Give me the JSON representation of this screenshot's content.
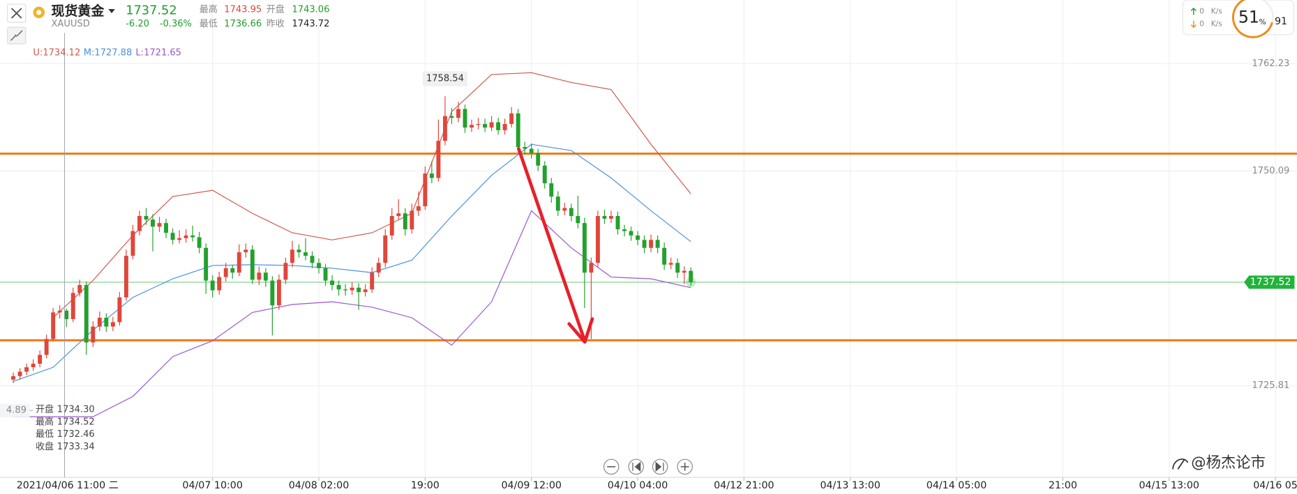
{
  "header": {
    "name": "现货黄金",
    "symbol": "XAUUSD",
    "change": "-6.20",
    "change_pct": "-0.36%",
    "high_label": "最高",
    "high": "1743.95",
    "open_label": "开盘",
    "open": "1743.06",
    "low_label": "最低",
    "low": "1736.66",
    "prev_close_label": "昨收",
    "prev_close": "1743.72"
  },
  "indicator": {
    "upper": "U:1734.12",
    "middle": "M:1727.88",
    "lower": "L:1721.65"
  },
  "crosshair": {
    "time": "2021/04/06 11:00 二",
    "price": "4.89",
    "labels": [
      "开盘",
      "最高",
      "最低",
      "收盘"
    ],
    "values": [
      "1734.30",
      "1734.52",
      "1732.46",
      "1733.34"
    ]
  },
  "widget": {
    "up_speed": "0",
    "down_speed": "0",
    "unit": "K/s",
    "percent": "51",
    "percent_sign": "%",
    "count": "91"
  },
  "watermark": "@杨杰论市",
  "chart_data": {
    "type": "candlestick",
    "up_color": "#e0463b",
    "down_color": "#22a12d",
    "xlim": [
      -2,
      193
    ],
    "ylim": [
      1715.44,
      1769.42
    ],
    "yticks": [
      1725.81,
      1750.09,
      1762.23
    ],
    "xticks": [
      {
        "value": 30,
        "label": "04/07 10:00"
      },
      {
        "value": 46,
        "label": "04/08 02:00"
      },
      {
        "value": 62,
        "label": "19:00"
      },
      {
        "value": 78,
        "label": "04/09 12:00"
      },
      {
        "value": 94,
        "label": "04/10 04:00"
      },
      {
        "value": 110,
        "label": "04/12 21:00"
      },
      {
        "value": 126,
        "label": "04/13 13:00"
      },
      {
        "value": 142,
        "label": "04/14 05:00"
      },
      {
        "value": 158,
        "label": "21:00"
      },
      {
        "value": 174,
        "label": "04/15 13:00"
      },
      {
        "value": 190,
        "label": "04/16 05"
      }
    ],
    "grid": true,
    "last_price": 1737.52,
    "last_color": "#22b33a",
    "horizontal_lines": [
      1752.05,
      1730.95
    ],
    "horizontal_line_color": "#f07a1a",
    "candles": [
      [
        1726.5,
        1727.3,
        1726.1,
        1726.9
      ],
      [
        1726.9,
        1727.8,
        1726.5,
        1727.4
      ],
      [
        1727.4,
        1728.3,
        1727.0,
        1727.9
      ],
      [
        1727.9,
        1728.8,
        1727.5,
        1728.3
      ],
      [
        1728.3,
        1729.8,
        1727.9,
        1729.3
      ],
      [
        1729.3,
        1731.6,
        1728.9,
        1731.1
      ],
      [
        1731.1,
        1734.6,
        1730.8,
        1734.1
      ],
      [
        1734.1,
        1734.9,
        1733.4,
        1734.3
      ],
      [
        1734.3,
        1734.52,
        1732.46,
        1733.34
      ],
      [
        1733.34,
        1736.9,
        1733.0,
        1736.3
      ],
      [
        1736.3,
        1737.8,
        1735.9,
        1737.2
      ],
      [
        1737.2,
        1737.6,
        1729.3,
        1730.7
      ],
      [
        1730.7,
        1733.1,
        1730.2,
        1732.5
      ],
      [
        1732.5,
        1734.2,
        1732.0,
        1733.5
      ],
      [
        1733.5,
        1734.0,
        1731.9,
        1732.5
      ],
      [
        1732.5,
        1733.6,
        1732.0,
        1733.0
      ],
      [
        1733.0,
        1736.4,
        1732.6,
        1735.8
      ],
      [
        1735.8,
        1741.2,
        1735.4,
        1740.5
      ],
      [
        1740.5,
        1744.0,
        1740.1,
        1743.3
      ],
      [
        1743.3,
        1745.6,
        1742.8,
        1745.0
      ],
      [
        1745.0,
        1745.9,
        1744.0,
        1744.6
      ],
      [
        1744.6,
        1745.2,
        1741.0,
        1743.8
      ],
      [
        1743.8,
        1744.9,
        1743.2,
        1744.2
      ],
      [
        1744.2,
        1744.7,
        1742.5,
        1743.1
      ],
      [
        1743.1,
        1743.6,
        1741.8,
        1742.3
      ],
      [
        1742.3,
        1743.4,
        1741.9,
        1742.5
      ],
      [
        1742.5,
        1743.5,
        1742.0,
        1742.8
      ],
      [
        1742.8,
        1743.9,
        1742.1,
        1742.6
      ],
      [
        1742.6,
        1743.2,
        1740.8,
        1741.4
      ],
      [
        1741.4,
        1741.9,
        1736.2,
        1737.7
      ],
      [
        1737.7,
        1738.3,
        1735.8,
        1736.6
      ],
      [
        1736.6,
        1738.7,
        1736.1,
        1738.1
      ],
      [
        1738.1,
        1739.7,
        1737.6,
        1739.1
      ],
      [
        1739.1,
        1739.5,
        1737.9,
        1738.6
      ],
      [
        1738.6,
        1741.8,
        1738.2,
        1740.9
      ],
      [
        1740.9,
        1741.9,
        1740.3,
        1741.2
      ],
      [
        1741.2,
        1741.7,
        1737.3,
        1737.8
      ],
      [
        1737.8,
        1739.3,
        1737.2,
        1738.6
      ],
      [
        1738.6,
        1739.1,
        1737.0,
        1737.7
      ],
      [
        1737.7,
        1738.2,
        1731.5,
        1734.9
      ],
      [
        1734.9,
        1738.4,
        1734.4,
        1737.8
      ],
      [
        1737.8,
        1740.3,
        1737.3,
        1739.7
      ],
      [
        1739.7,
        1742.2,
        1739.2,
        1741.2
      ],
      [
        1741.2,
        1741.8,
        1740.3,
        1740.9
      ],
      [
        1740.9,
        1742.5,
        1740.0,
        1740.5
      ],
      [
        1740.5,
        1741.0,
        1739.1,
        1739.7
      ],
      [
        1739.7,
        1740.2,
        1738.5,
        1739.1
      ],
      [
        1739.1,
        1739.6,
        1737.1,
        1737.7
      ],
      [
        1737.7,
        1738.3,
        1736.6,
        1737.2
      ],
      [
        1737.2,
        1737.7,
        1736.0,
        1736.7
      ],
      [
        1736.7,
        1737.3,
        1736.0,
        1736.6
      ],
      [
        1736.6,
        1737.5,
        1736.1,
        1736.9
      ],
      [
        1736.9,
        1737.4,
        1734.4,
        1736.4
      ],
      [
        1736.4,
        1737.3,
        1735.9,
        1736.7
      ],
      [
        1736.7,
        1739.2,
        1736.3,
        1738.6
      ],
      [
        1738.6,
        1740.3,
        1738.1,
        1739.7
      ],
      [
        1739.7,
        1743.5,
        1739.2,
        1742.8
      ],
      [
        1742.8,
        1745.9,
        1742.3,
        1745.0
      ],
      [
        1745.0,
        1746.9,
        1744.6,
        1745.3
      ],
      [
        1745.3,
        1745.9,
        1742.8,
        1743.5
      ],
      [
        1743.5,
        1746.4,
        1743.0,
        1745.6
      ],
      [
        1745.6,
        1747.8,
        1745.0,
        1746.1
      ],
      [
        1746.1,
        1750.6,
        1745.7,
        1749.8
      ],
      [
        1749.8,
        1751.2,
        1748.7,
        1749.3
      ],
      [
        1749.3,
        1755.9,
        1748.9,
        1753.5
      ],
      [
        1753.5,
        1758.54,
        1753.0,
        1756.3
      ],
      [
        1756.3,
        1757.2,
        1755.4,
        1756.1
      ],
      [
        1756.1,
        1757.9,
        1755.6,
        1757.1
      ],
      [
        1757.1,
        1757.6,
        1754.4,
        1755.0
      ],
      [
        1755.0,
        1755.9,
        1754.5,
        1755.3
      ],
      [
        1755.3,
        1756.1,
        1754.8,
        1755.4
      ],
      [
        1755.4,
        1756.0,
        1754.5,
        1755.0
      ],
      [
        1755.0,
        1756.3,
        1754.6,
        1755.6
      ],
      [
        1755.6,
        1756.1,
        1754.2,
        1754.7
      ],
      [
        1754.7,
        1756.0,
        1754.2,
        1755.4
      ],
      [
        1755.4,
        1757.3,
        1755.0,
        1756.6
      ],
      [
        1756.6,
        1757.1,
        1752.2,
        1752.8
      ],
      [
        1752.8,
        1753.4,
        1752.0,
        1752.6
      ],
      [
        1752.6,
        1753.2,
        1751.5,
        1752.1
      ],
      [
        1752.1,
        1752.6,
        1750.1,
        1750.7
      ],
      [
        1750.7,
        1751.2,
        1748.1,
        1748.7
      ],
      [
        1748.7,
        1749.3,
        1746.5,
        1747.2
      ],
      [
        1747.2,
        1747.8,
        1745.0,
        1745.6
      ],
      [
        1745.6,
        1746.5,
        1745.1,
        1745.9
      ],
      [
        1745.9,
        1746.4,
        1744.4,
        1745.0
      ],
      [
        1745.0,
        1747.3,
        1743.6,
        1744.2
      ],
      [
        1744.2,
        1744.8,
        1734.6,
        1738.6
      ],
      [
        1738.6,
        1740.3,
        1731.1,
        1739.7
      ],
      [
        1739.7,
        1745.6,
        1739.2,
        1745.0
      ],
      [
        1745.0,
        1745.7,
        1744.1,
        1744.7
      ],
      [
        1744.7,
        1745.6,
        1744.2,
        1745.0
      ],
      [
        1745.0,
        1745.5,
        1742.9,
        1743.5
      ],
      [
        1743.5,
        1744.0,
        1742.7,
        1743.3
      ],
      [
        1743.3,
        1743.8,
        1742.2,
        1742.8
      ],
      [
        1742.8,
        1743.3,
        1741.7,
        1742.3
      ],
      [
        1742.3,
        1742.8,
        1740.8,
        1741.4
      ],
      [
        1741.4,
        1742.9,
        1740.9,
        1742.3
      ],
      [
        1742.3,
        1742.8,
        1740.8,
        1741.4
      ],
      [
        1741.4,
        1742.0,
        1738.9,
        1739.5
      ],
      [
        1739.5,
        1740.3,
        1739.0,
        1739.7
      ],
      [
        1739.7,
        1740.2,
        1738.0,
        1738.6
      ],
      [
        1738.6,
        1739.3,
        1737.3,
        1738.8
      ],
      [
        1738.8,
        1739.2,
        1737.1,
        1737.52
      ]
    ],
    "high_mark": 65,
    "bands": [
      {
        "color": "#d2574a",
        "x": [
          0,
          6,
          12,
          18,
          24,
          30,
          36,
          42,
          48,
          54,
          60,
          66,
          72,
          78,
          84,
          90,
          96,
          102
        ],
        "values": [
          null,
          1733.5,
          1737.7,
          1742.8,
          1747.2,
          1747.9,
          1745.3,
          1743.1,
          1742.3,
          1743.1,
          1745.3,
          1756.8,
          1761.0,
          1761.2,
          1760.1,
          1759.3,
          1753.1,
          1747.5
        ]
      },
      {
        "color": "#4a8fe0",
        "x": [
          0,
          6,
          12,
          18,
          24,
          30,
          36,
          42,
          48,
          54,
          60,
          66,
          72,
          78,
          84,
          90,
          96,
          102
        ],
        "values": [
          1726.3,
          1727.9,
          1732.1,
          1735.8,
          1737.9,
          1739.4,
          1739.5,
          1739.4,
          1739.1,
          1738.6,
          1740.0,
          1745.0,
          1749.6,
          1753.1,
          1752.4,
          1749.3,
          1745.6,
          1742.1
        ]
      },
      {
        "color": "#9a55d0",
        "x": [
          0,
          6,
          12,
          18,
          24,
          30,
          36,
          42,
          48,
          54,
          60,
          66,
          72,
          78,
          84,
          90,
          96,
          102
        ],
        "values": [
          1722.3,
          1722.3,
          1722.3,
          1724.6,
          1729.1,
          1730.9,
          1734.1,
          1735.0,
          1735.3,
          1734.7,
          1733.5,
          1730.4,
          1735.3,
          1745.6,
          1741.4,
          1738.1,
          1737.9,
          1736.9
        ]
      }
    ]
  }
}
